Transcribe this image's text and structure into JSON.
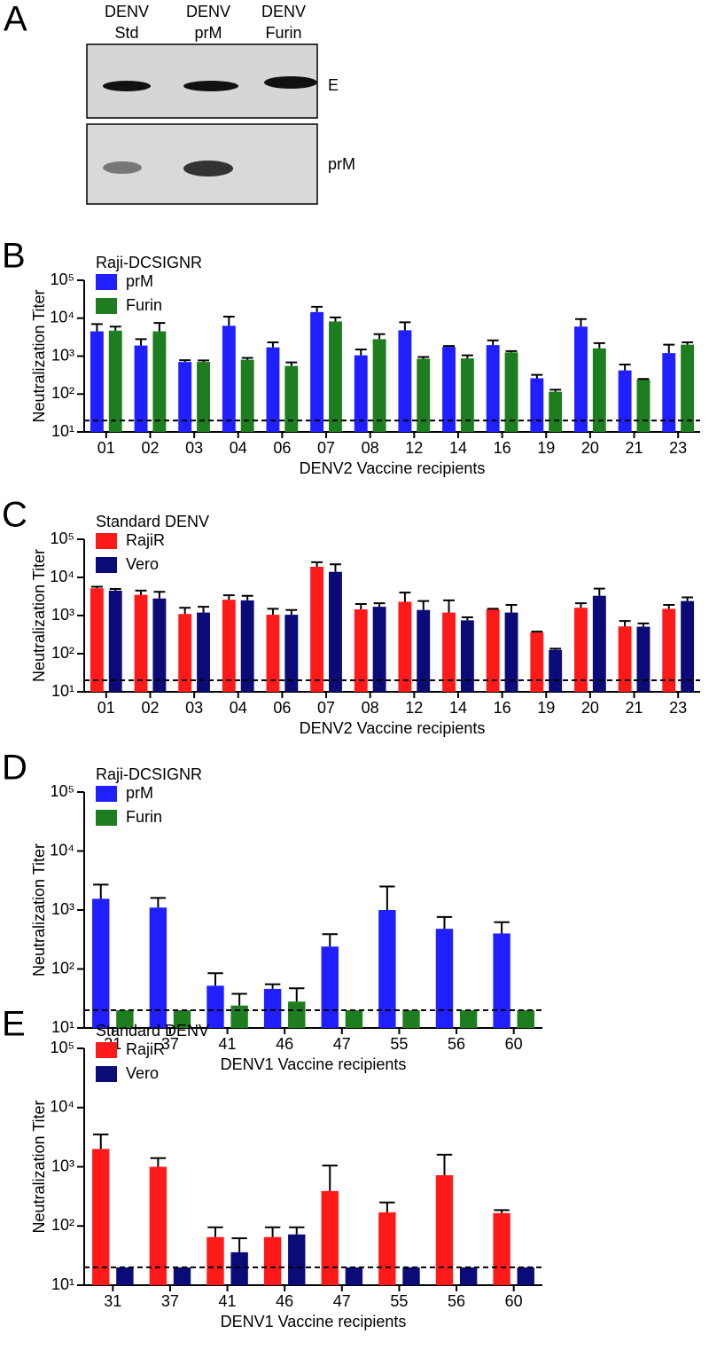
{
  "blot": {
    "panel_label": "A",
    "lanes": [
      [
        "DENV",
        "Std"
      ],
      [
        "DENV",
        "prM"
      ],
      [
        "DENV",
        "Furin"
      ]
    ],
    "rows": [
      "E",
      "prM"
    ]
  },
  "chart_data": [
    {
      "type": "bar",
      "panel_label": "B",
      "legend_title": "Raji-DCSIGNR",
      "x_label": "DENV2 Vaccine recipients",
      "y_label": "Neutralization Titer",
      "log_scale": true,
      "threshold": 20,
      "categories": [
        "01",
        "02",
        "03",
        "04",
        "06",
        "07",
        "08",
        "12",
        "14",
        "16",
        "19",
        "20",
        "21",
        "23"
      ],
      "series": [
        {
          "name": "prM",
          "color": "#1f1fff",
          "values": [
            4500,
            1900,
            700,
            6300,
            1700,
            14500,
            1050,
            4800,
            1750,
            1950,
            260,
            6000,
            420,
            1200
          ],
          "errors": [
            2500,
            900,
            80,
            4700,
            600,
            5500,
            450,
            3000,
            100,
            650,
            60,
            3500,
            180,
            800
          ]
        },
        {
          "name": "Furin",
          "color": "#1e7d1e",
          "values": [
            4700,
            4500,
            700,
            800,
            550,
            8200,
            2800,
            850,
            870,
            1250,
            115,
            1600,
            240,
            2000
          ],
          "errors": [
            1300,
            3000,
            70,
            100,
            130,
            2300,
            1000,
            100,
            180,
            100,
            15,
            600,
            10,
            300
          ]
        }
      ],
      "ylim": [
        10,
        100000
      ],
      "yticks": [
        {
          "value": 10,
          "label": "10¹"
        },
        {
          "value": 100,
          "label": "10²"
        },
        {
          "value": 1000,
          "label": "10³"
        },
        {
          "value": 10000,
          "label": "10⁴"
        },
        {
          "value": 100000,
          "label": "10⁵"
        }
      ]
    },
    {
      "type": "bar",
      "panel_label": "C",
      "legend_title": "Standard DENV",
      "x_label": "DENV2 Vaccine recipients",
      "y_label": "Neutralization Titer",
      "log_scale": true,
      "threshold": 20,
      "categories": [
        "01",
        "02",
        "03",
        "04",
        "06",
        "07",
        "08",
        "12",
        "14",
        "16",
        "19",
        "20",
        "21",
        "23"
      ],
      "series": [
        {
          "name": "RajiR",
          "color": "#ff1a1a",
          "values": [
            5200,
            3500,
            1100,
            2600,
            1050,
            19000,
            1450,
            2300,
            1200,
            1450,
            360,
            1600,
            520,
            1500
          ],
          "errors": [
            500,
            1000,
            500,
            800,
            450,
            6000,
            550,
            1700,
            1300,
            50,
            20,
            500,
            200,
            400
          ]
        },
        {
          "name": "Vero",
          "color": "#0b0b78",
          "values": [
            4500,
            2800,
            1200,
            2500,
            1050,
            14000,
            1700,
            1400,
            750,
            1200,
            125,
            3300,
            510,
            2400
          ],
          "errors": [
            500,
            1400,
            500,
            800,
            350,
            8000,
            400,
            1000,
            150,
            700,
            10,
            1800,
            110,
            600
          ]
        }
      ],
      "ylim": [
        10,
        100000
      ],
      "yticks": [
        {
          "value": 10,
          "label": "10¹"
        },
        {
          "value": 100,
          "label": "10²"
        },
        {
          "value": 1000,
          "label": "10³"
        },
        {
          "value": 10000,
          "label": "10⁴"
        },
        {
          "value": 100000,
          "label": "10⁵"
        }
      ]
    },
    {
      "type": "bar",
      "panel_label": "D",
      "legend_title": "Raji-DCSIGNR",
      "x_label": "DENV1 Vaccine recipients",
      "y_label": "Neutralization Titer",
      "log_scale": true,
      "threshold": 20,
      "categories": [
        "31",
        "37",
        "41",
        "46",
        "47",
        "55",
        "56",
        "60"
      ],
      "series": [
        {
          "name": "prM",
          "color": "#1f1fff",
          "values": [
            1550,
            1100,
            52,
            46,
            240,
            1000,
            480,
            400
          ],
          "errors": [
            1150,
            500,
            33,
            9,
            150,
            1500,
            280,
            220
          ]
        },
        {
          "name": "Furin",
          "color": "#1e7d1e",
          "values": [
            20,
            20,
            24,
            28,
            20,
            20,
            20,
            20
          ],
          "errors": [
            null,
            null,
            14,
            19,
            null,
            null,
            null,
            null
          ]
        }
      ],
      "ylim": [
        10,
        100000
      ],
      "yticks": [
        {
          "value": 10,
          "label": "10¹"
        },
        {
          "value": 100,
          "label": "10²"
        },
        {
          "value": 1000,
          "label": "10³"
        },
        {
          "value": 10000,
          "label": "10⁴"
        },
        {
          "value": 100000,
          "label": "10⁵"
        }
      ]
    },
    {
      "type": "bar",
      "panel_label": "E",
      "legend_title": "Standard DENV",
      "x_label": "DENV1 Vaccine recipients",
      "y_label": "Neutralization Titer",
      "log_scale": true,
      "threshold": 20,
      "categories": [
        "31",
        "37",
        "41",
        "46",
        "47",
        "55",
        "56",
        "60"
      ],
      "series": [
        {
          "name": "RajiR",
          "color": "#ff1a1a",
          "values": [
            2000,
            1000,
            65,
            65,
            390,
            170,
            720,
            165
          ],
          "errors": [
            1500,
            400,
            30,
            30,
            660,
            80,
            880,
            20
          ]
        },
        {
          "name": "Vero",
          "color": "#0b0b78",
          "values": [
            20,
            20,
            36,
            72,
            20,
            20,
            20,
            20
          ],
          "errors": [
            null,
            null,
            26,
            23,
            null,
            null,
            null,
            null
          ]
        }
      ],
      "ylim": [
        10,
        100000
      ],
      "yticks": [
        {
          "value": 10,
          "label": "10¹"
        },
        {
          "value": 100,
          "label": "10²"
        },
        {
          "value": 1000,
          "label": "10³"
        },
        {
          "value": 10000,
          "label": "10⁴"
        },
        {
          "value": 100000,
          "label": "10⁵"
        }
      ]
    }
  ]
}
